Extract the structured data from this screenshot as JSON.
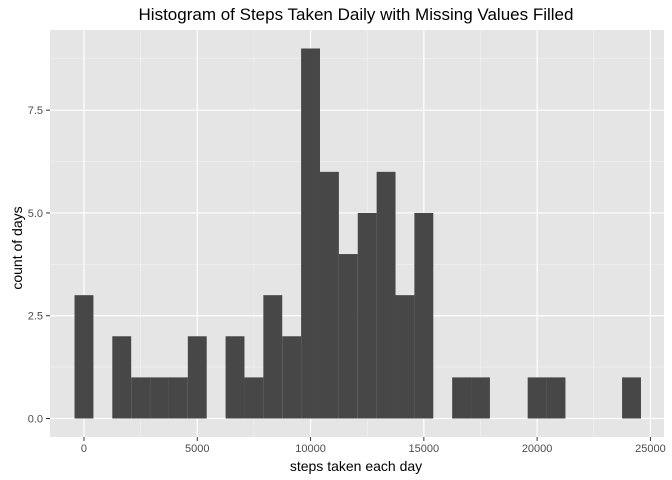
{
  "chart_data": {
    "type": "bar",
    "title": "Histogram of Steps Taken Daily with Missing Values Filled",
    "xlabel": "steps taken each day",
    "ylabel": "count of days",
    "bin_width": 833.333,
    "bins": [
      {
        "start": -416.667,
        "end": 416.667,
        "count": 3
      },
      {
        "start": 416.667,
        "end": 1250,
        "count": 0
      },
      {
        "start": 1250,
        "end": 2083.333,
        "count": 2
      },
      {
        "start": 2083.333,
        "end": 2916.667,
        "count": 1
      },
      {
        "start": 2916.667,
        "end": 3750,
        "count": 1
      },
      {
        "start": 3750,
        "end": 4583.333,
        "count": 1
      },
      {
        "start": 4583.333,
        "end": 5416.667,
        "count": 2
      },
      {
        "start": 5416.667,
        "end": 6250,
        "count": 0
      },
      {
        "start": 6250,
        "end": 7083.333,
        "count": 2
      },
      {
        "start": 7083.333,
        "end": 7916.667,
        "count": 1
      },
      {
        "start": 7916.667,
        "end": 8750,
        "count": 3
      },
      {
        "start": 8750,
        "end": 9583.333,
        "count": 2
      },
      {
        "start": 9583.333,
        "end": 10416.667,
        "count": 9
      },
      {
        "start": 10416.667,
        "end": 11250,
        "count": 6
      },
      {
        "start": 11250,
        "end": 12083.333,
        "count": 4
      },
      {
        "start": 12083.333,
        "end": 12916.667,
        "count": 5
      },
      {
        "start": 12916.667,
        "end": 13750,
        "count": 6
      },
      {
        "start": 13750,
        "end": 14583.333,
        "count": 3
      },
      {
        "start": 14583.333,
        "end": 15416.667,
        "count": 5
      },
      {
        "start": 15416.667,
        "end": 16250,
        "count": 0
      },
      {
        "start": 16250,
        "end": 17083.333,
        "count": 1
      },
      {
        "start": 17083.333,
        "end": 17916.667,
        "count": 1
      },
      {
        "start": 17916.667,
        "end": 18750,
        "count": 0
      },
      {
        "start": 18750,
        "end": 19583.333,
        "count": 0
      },
      {
        "start": 19583.333,
        "end": 20416.667,
        "count": 1
      },
      {
        "start": 20416.667,
        "end": 21250,
        "count": 1
      },
      {
        "start": 21250,
        "end": 22083.333,
        "count": 0
      },
      {
        "start": 22083.333,
        "end": 22916.667,
        "count": 0
      },
      {
        "start": 22916.667,
        "end": 23750,
        "count": 0
      },
      {
        "start": 23750,
        "end": 24583.333,
        "count": 1
      }
    ],
    "xlim": [
      -1500,
      25600
    ],
    "ylim": [
      -0.45,
      9.45
    ],
    "x_ticks": [
      0,
      5000,
      10000,
      15000,
      20000,
      25000
    ],
    "x_tick_labels": [
      "0",
      "5000",
      "10000",
      "15000",
      "20000",
      "25000"
    ],
    "y_ticks": [
      0,
      2.5,
      5,
      7.5
    ],
    "y_tick_labels": [
      "0.0",
      "2.5",
      "5.0",
      "7.5"
    ],
    "grid": true,
    "legend": "none",
    "colors": {
      "panel": "#e5e5e5",
      "grid_major": "#ffffff",
      "grid_minor": "#f2f2f2",
      "bar": "#474747",
      "tick_text": "#4d4d4d",
      "tick_mark": "#333333"
    }
  }
}
